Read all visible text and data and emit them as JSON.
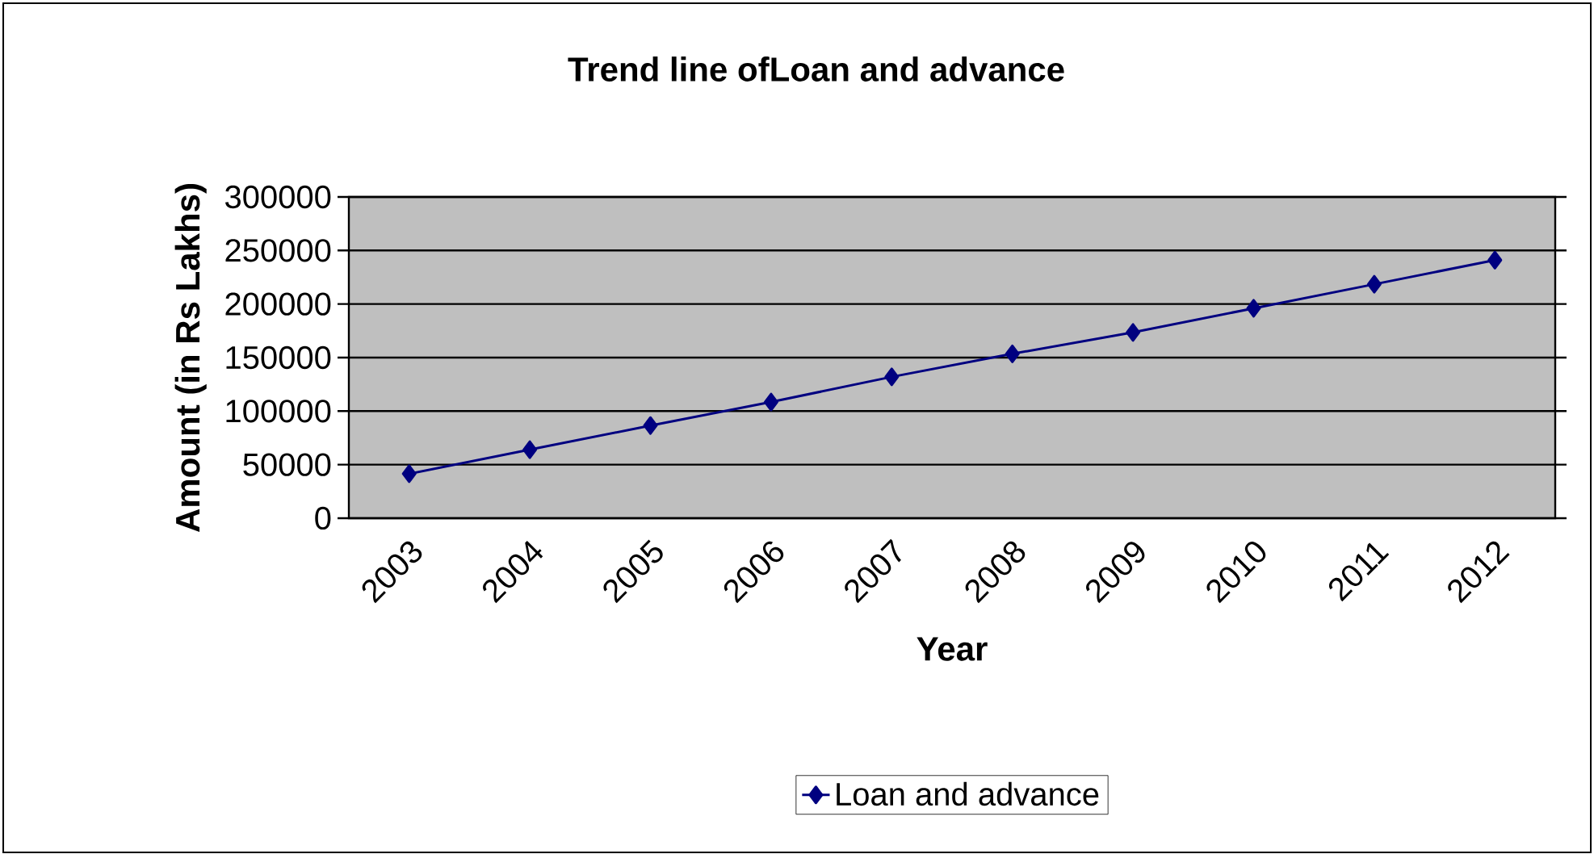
{
  "chart_data": {
    "type": "line",
    "title": "Trend line ofLoan and advance",
    "xlabel": "Year",
    "ylabel": "Amount (in Rs Lakhs)",
    "categories": [
      "2003",
      "2004",
      "2005",
      "2006",
      "2007",
      "2008",
      "2009",
      "2010",
      "2011",
      "2012"
    ],
    "series": [
      {
        "name": "Loan and advance",
        "color": "#000080",
        "values": [
          41500,
          64000,
          86500,
          108500,
          132000,
          153500,
          173500,
          196000,
          218500,
          241000
        ]
      }
    ],
    "ylim": [
      0,
      300000
    ],
    "yticks": [
      0,
      50000,
      100000,
      150000,
      200000,
      250000,
      300000
    ],
    "grid": "y",
    "legend": "bottom",
    "marker": "diamond",
    "line_style": "solid"
  }
}
